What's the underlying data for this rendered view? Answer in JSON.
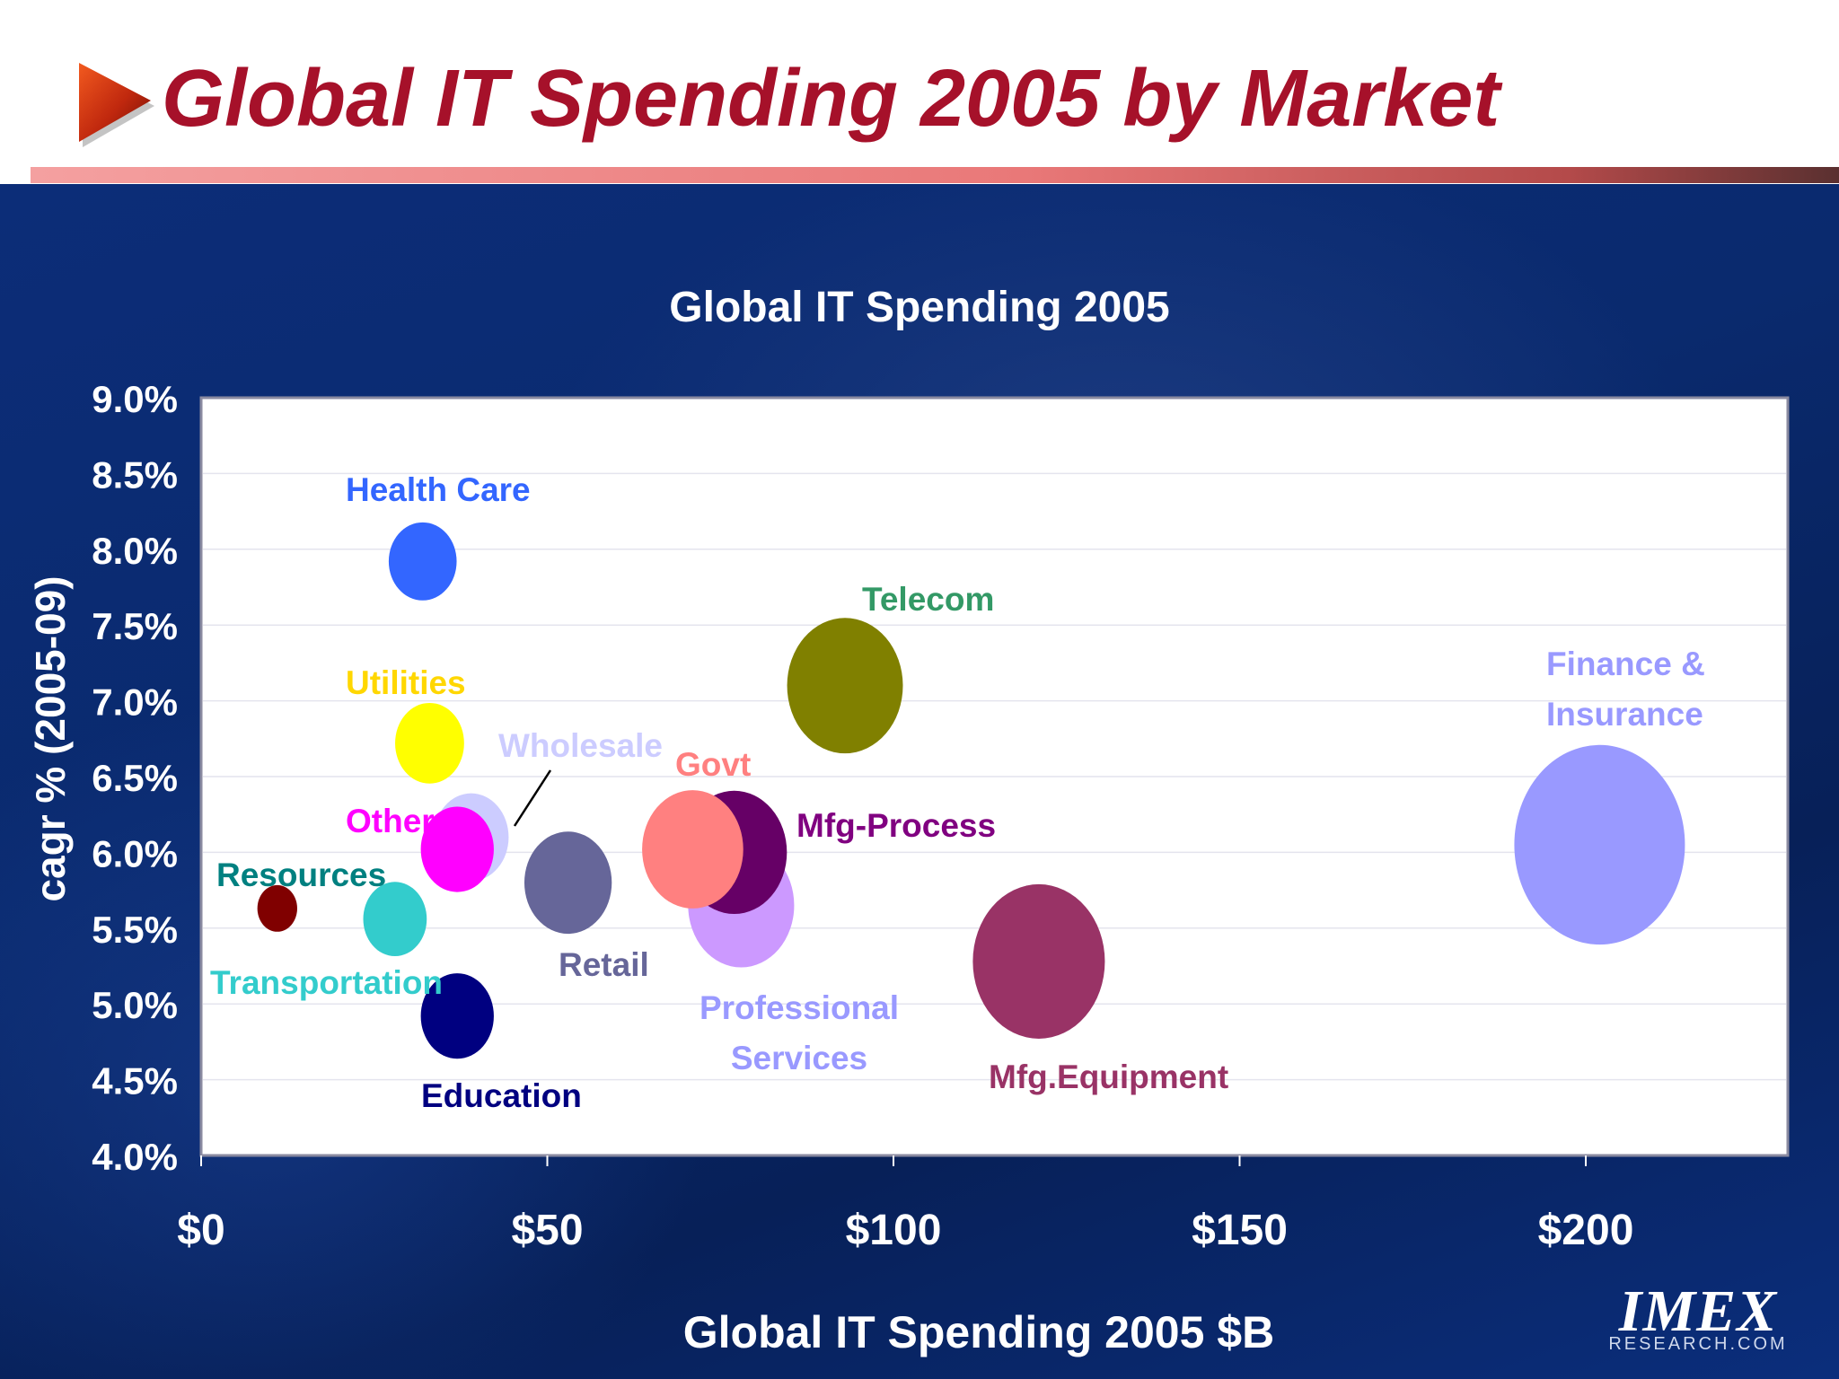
{
  "slide": {
    "title": "Global IT Spending 2005 by Market",
    "title_color": "#a6112a",
    "logo": {
      "main": "IMEX",
      "sub": "RESEARCH.COM"
    }
  },
  "chart_data": {
    "type": "bubble",
    "title": "Global IT Spending 2005",
    "xlabel": "Global IT Spending 2005 $B",
    "ylabel": "cagr % (2005-09)",
    "xlim": [
      0,
      225
    ],
    "ylim": [
      4.0,
      9.0
    ],
    "x_ticks": [
      {
        "value": 0,
        "label": "$0"
      },
      {
        "value": 50,
        "label": "$50"
      },
      {
        "value": 100,
        "label": "$100"
      },
      {
        "value": 150,
        "label": "$150"
      },
      {
        "value": 200,
        "label": "$200"
      }
    ],
    "y_ticks": [
      {
        "value": 4.0,
        "label": "4.0%"
      },
      {
        "value": 4.5,
        "label": "4.5%"
      },
      {
        "value": 5.0,
        "label": "5.0%"
      },
      {
        "value": 5.5,
        "label": "5.5%"
      },
      {
        "value": 6.0,
        "label": "6.0%"
      },
      {
        "value": 6.5,
        "label": "6.5%"
      },
      {
        "value": 7.0,
        "label": "7.0%"
      },
      {
        "value": 7.5,
        "label": "7.5%"
      },
      {
        "value": 8.0,
        "label": "8.0%"
      },
      {
        "value": 8.5,
        "label": "8.5%"
      },
      {
        "value": 9.0,
        "label": "9.0%"
      }
    ],
    "grid": true,
    "legend": "none (direct labels)",
    "series": [
      {
        "name": "Health Care",
        "label_lines": [
          "Health Care"
        ],
        "x": 32,
        "y": 7.92,
        "size": 32,
        "color": "#3366ff",
        "label_color": "#3366ff"
      },
      {
        "name": "Utilities",
        "label_lines": [
          "Utilities"
        ],
        "x": 33,
        "y": 6.72,
        "size": 33,
        "color": "#ffff00",
        "label_color": "#ffd700"
      },
      {
        "name": "Wholesale",
        "label_lines": [
          "Wholesale"
        ],
        "x": 39,
        "y": 6.1,
        "size": 39,
        "color": "#ccccff",
        "label_color": "#ccccff"
      },
      {
        "name": "Other",
        "label_lines": [
          "Other"
        ],
        "x": 37,
        "y": 6.02,
        "size": 37,
        "color": "#ff00ff",
        "label_color": "#ff00ff"
      },
      {
        "name": "Resources",
        "label_lines": [
          "Resources"
        ],
        "x": 11,
        "y": 5.63,
        "size": 11,
        "color": "#800000",
        "label_color": "#008080"
      },
      {
        "name": "Transportation",
        "label_lines": [
          "Transportation"
        ],
        "x": 28,
        "y": 5.56,
        "size": 28,
        "color": "#33cccc",
        "label_color": "#33cccc"
      },
      {
        "name": "Education",
        "label_lines": [
          "Education"
        ],
        "x": 37,
        "y": 4.92,
        "size": 37,
        "color": "#000080",
        "label_color": "#000080"
      },
      {
        "name": "Retail",
        "label_lines": [
          "Retail"
        ],
        "x": 53,
        "y": 5.8,
        "size": 53,
        "color": "#666699",
        "label_color": "#666699"
      },
      {
        "name": "Professional Services",
        "label_lines": [
          "Professional",
          "Services"
        ],
        "x": 78,
        "y": 5.65,
        "size": 78,
        "color": "#cc99ff",
        "label_color": "#9999ff"
      },
      {
        "name": "Mfg-Process",
        "label_lines": [
          "Mfg-Process"
        ],
        "x": 77,
        "y": 6.0,
        "size": 77,
        "color": "#660066",
        "label_color": "#800080"
      },
      {
        "name": "Govt",
        "label_lines": [
          "Govt"
        ],
        "x": 71,
        "y": 6.02,
        "size": 71,
        "color": "#ff8080",
        "label_color": "#ff8080"
      },
      {
        "name": "Telecom",
        "label_lines": [
          "Telecom"
        ],
        "x": 93,
        "y": 7.1,
        "size": 93,
        "color": "#808000",
        "label_color": "#339966"
      },
      {
        "name": "Mfg.Equipment",
        "label_lines": [
          "Mfg.Equipment"
        ],
        "x": 121,
        "y": 5.28,
        "size": 121,
        "color": "#993366",
        "label_color": "#993366"
      },
      {
        "name": "Finance & Insurance",
        "label_lines": [
          "Finance &",
          "Insurance"
        ],
        "x": 202,
        "y": 6.05,
        "size": 202,
        "color": "#9999ff",
        "label_color": "#9999ff"
      }
    ]
  }
}
